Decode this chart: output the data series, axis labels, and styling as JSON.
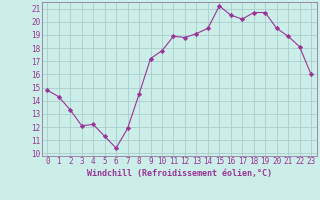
{
  "x": [
    0,
    1,
    2,
    3,
    4,
    5,
    6,
    7,
    8,
    9,
    10,
    11,
    12,
    13,
    14,
    15,
    16,
    17,
    18,
    19,
    20,
    21,
    22,
    23
  ],
  "y": [
    14.8,
    14.3,
    13.3,
    12.1,
    12.2,
    11.3,
    10.4,
    11.9,
    14.5,
    17.2,
    17.8,
    18.9,
    18.8,
    19.1,
    19.5,
    21.2,
    20.5,
    20.2,
    20.7,
    20.7,
    19.5,
    18.9,
    18.1,
    16.0
  ],
  "line_color": "#993399",
  "marker": "D",
  "marker_size": 2.2,
  "bg_color": "#cceee8",
  "grid_color": "#aacccc",
  "xlabel": "Windchill (Refroidissement éolien,°C)",
  "ylabel": "",
  "ylim": [
    9.8,
    21.5
  ],
  "xlim": [
    -0.5,
    23.5
  ],
  "yticks": [
    10,
    11,
    12,
    13,
    14,
    15,
    16,
    17,
    18,
    19,
    20,
    21
  ],
  "xticks": [
    0,
    1,
    2,
    3,
    4,
    5,
    6,
    7,
    8,
    9,
    10,
    11,
    12,
    13,
    14,
    15,
    16,
    17,
    18,
    19,
    20,
    21,
    22,
    23
  ],
  "tick_color": "#993399",
  "axis_color": "#9988aa",
  "label_fontsize": 6.0,
  "tick_fontsize": 5.5
}
